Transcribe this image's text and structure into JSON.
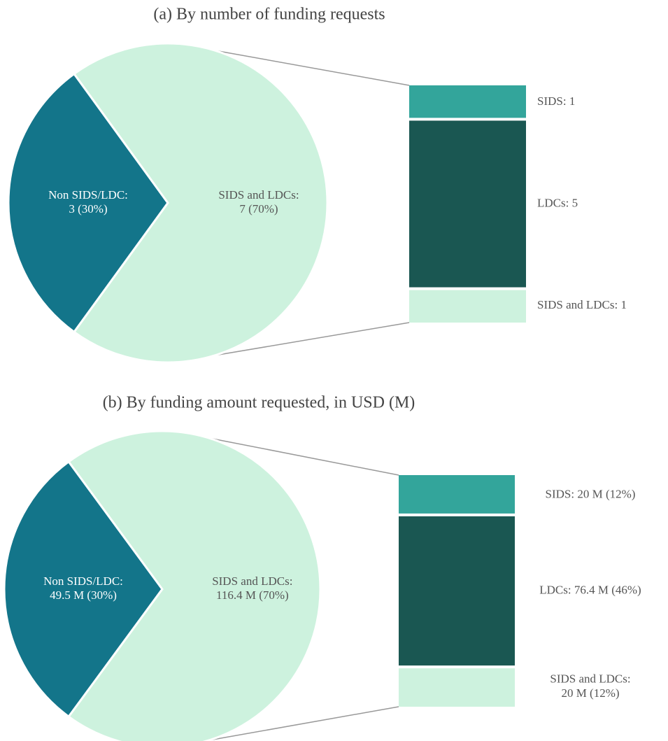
{
  "chart_data": [
    {
      "type": "pie",
      "title": "(a) By number of funding requests",
      "categories": [
        "Non SIDS/LDC:",
        "SIDS and LDCs:"
      ],
      "values": [
        3,
        7
      ],
      "value_labels": [
        "3 (30%)",
        "7 (70%)"
      ],
      "colors": [
        "#13758a",
        "#cdf2de"
      ],
      "bar": {
        "categories": [
          "SIDS:",
          "LDCs:",
          "SIDS and LDCs:"
        ],
        "values": [
          1,
          5,
          1
        ],
        "colors": [
          "#33a59b",
          "#1a5752",
          "#cdf2de"
        ]
      }
    },
    {
      "type": "pie",
      "title": "(b) By funding amount requested, in USD (M)",
      "categories": [
        "Non SIDS/LDC:",
        "SIDS and LDCs:"
      ],
      "values": [
        49.5,
        116.4
      ],
      "value_labels": [
        "49.5 M (30%)",
        "116.4 M (70%)"
      ],
      "colors": [
        "#13758a",
        "#cdf2de"
      ],
      "bar": {
        "categories": [
          "SIDS:",
          "LDCs:",
          "SIDS and LDCs:"
        ],
        "values": [
          20,
          76.4,
          20
        ],
        "value_labels": [
          "20 M (12%)",
          "76.4 M (46%)",
          "20 M (12%)"
        ],
        "colors": [
          "#33a59b",
          "#1a5752",
          "#cdf2de"
        ]
      }
    }
  ]
}
